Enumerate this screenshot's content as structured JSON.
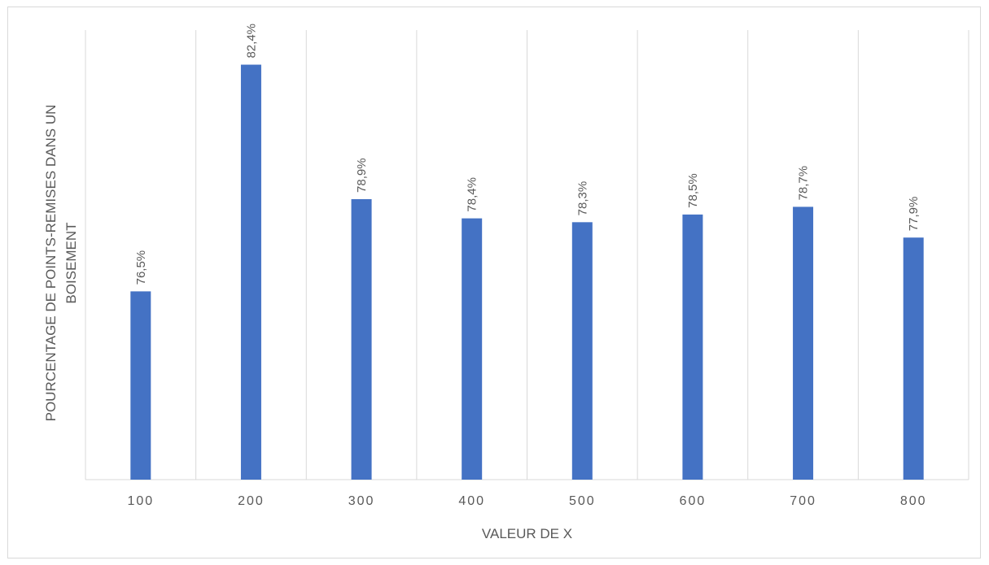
{
  "chart_data": {
    "type": "bar",
    "categories": [
      "100",
      "200",
      "300",
      "400",
      "500",
      "600",
      "700",
      "800"
    ],
    "values": [
      76.5,
      82.4,
      78.9,
      78.4,
      78.3,
      78.5,
      78.7,
      77.9
    ],
    "data_labels": [
      "76,5%",
      "82,4%",
      "78,9%",
      "78,4%",
      "78,3%",
      "78,5%",
      "78,7%",
      "77,9%"
    ],
    "title": "",
    "xlabel": "VALEUR DE X",
    "ylabel_lines": [
      "POURCENTAGE DE POINTS-REMISES DANS UN",
      "BOISEMENT"
    ],
    "ylim": [
      71.6,
      83.3
    ],
    "grid": "vertical",
    "legend": "none",
    "bar_color": "#4472c4",
    "grid_color": "#d9d9d9"
  }
}
